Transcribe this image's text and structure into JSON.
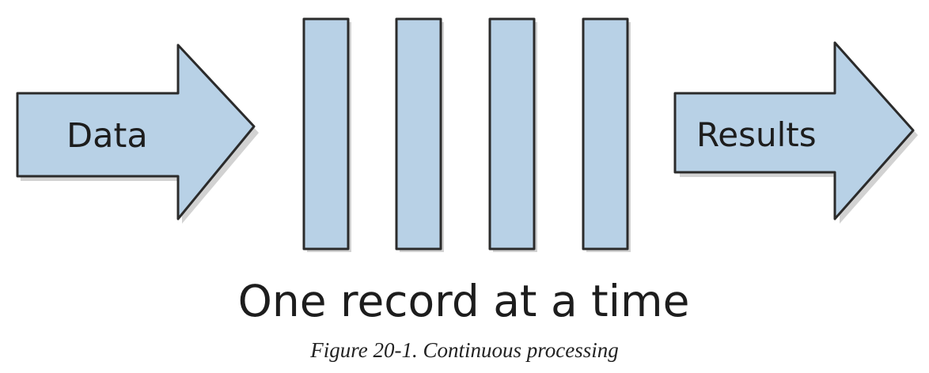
{
  "diagram": {
    "input_label": "Data",
    "output_label": "Results",
    "processing_label": "One record at a time",
    "record_count": 4
  },
  "caption": "Figure 20-1. Continuous processing",
  "colors": {
    "shape_fill": "#b8d1e6",
    "outline": "#2b2b2b",
    "text": "#1d1d1d"
  }
}
